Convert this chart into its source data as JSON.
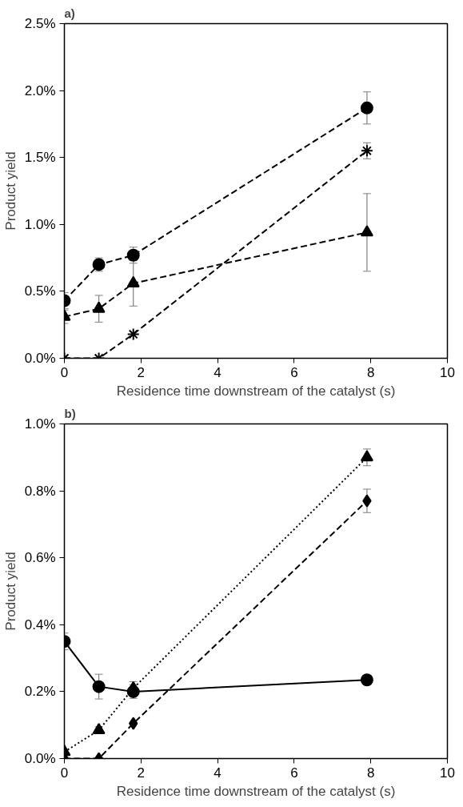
{
  "chart_data": [
    {
      "type": "line",
      "title": "a)",
      "xlabel": "Residence time downstream of the catalyst (s)",
      "ylabel": "Product yield",
      "x": [
        0,
        0.9,
        1.8,
        7.9
      ],
      "xlim": [
        0,
        10
      ],
      "xticks": [
        0,
        2,
        4,
        6,
        8,
        10
      ],
      "ylim": [
        0,
        2.5
      ],
      "yticks": [
        {
          "value": 0,
          "label": "0.0%"
        },
        {
          "value": 0.5,
          "label": "0.5%"
        },
        {
          "value": 1.0,
          "label": "1.0%"
        },
        {
          "value": 1.5,
          "label": "1.5%"
        },
        {
          "value": 2.0,
          "label": "2.0%"
        },
        {
          "value": 2.5,
          "label": "2.5%"
        }
      ],
      "grid": false,
      "series": [
        {
          "color": "#000000",
          "marker": "circle",
          "line_style": "dashed",
          "values": [
            0.43,
            0.7,
            0.77,
            1.87
          ],
          "errors": [
            0.06,
            0.05,
            0.06,
            0.12
          ]
        },
        {
          "color": "#000000",
          "marker": "triangle",
          "line_style": "dashed",
          "values": [
            0.31,
            0.37,
            0.56,
            0.94
          ],
          "errors": [
            0.05,
            0.1,
            0.17,
            0.29
          ]
        },
        {
          "color": "#000000",
          "marker": "cross",
          "line_style": "dashed",
          "values": [
            0,
            0,
            0.18,
            1.55
          ],
          "errors": [
            null,
            null,
            null,
            0.06
          ]
        }
      ]
    },
    {
      "type": "line",
      "title": "b)",
      "xlabel": "Residence time downstream of the catalyst (s)",
      "ylabel": "Product yield",
      "x": [
        0,
        0.9,
        1.8,
        7.9
      ],
      "xlim": [
        0,
        10
      ],
      "xticks": [
        0,
        2,
        4,
        6,
        8,
        10
      ],
      "ylim": [
        0,
        1.0
      ],
      "yticks": [
        {
          "value": 0,
          "label": "0.0%"
        },
        {
          "value": 0.2,
          "label": "0.2%"
        },
        {
          "value": 0.4,
          "label": "0.4%"
        },
        {
          "value": 0.6,
          "label": "0.6%"
        },
        {
          "value": 0.8,
          "label": "0.8%"
        },
        {
          "value": 1.0,
          "label": "1.0%"
        }
      ],
      "grid": false,
      "series": [
        {
          "color": "#000000",
          "marker": "circle",
          "line_style": "solid",
          "values": [
            0.35,
            0.215,
            0.2,
            0.235
          ],
          "errors": [
            0.025,
            0.037,
            0.02,
            null
          ]
        },
        {
          "color": "#000000",
          "marker": "triangle",
          "line_style": "dotted",
          "values": [
            0.02,
            0.085,
            0.21,
            0.9
          ],
          "errors": [
            null,
            0.01,
            0.02,
            0.025
          ]
        },
        {
          "color": "#000000",
          "marker": "diamond",
          "line_style": "dashed",
          "values": [
            0,
            0,
            0.105,
            0.77
          ],
          "errors": [
            null,
            null,
            null,
            0.035
          ]
        }
      ]
    }
  ]
}
